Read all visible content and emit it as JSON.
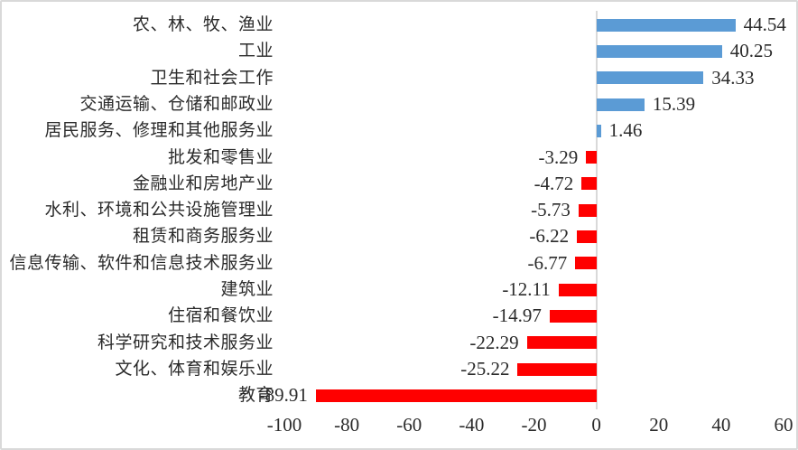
{
  "chart_data": {
    "type": "bar",
    "orientation": "horizontal",
    "title": "",
    "xlabel": "",
    "ylabel": "",
    "xlim": [
      -100,
      60
    ],
    "grid": false,
    "legend": false,
    "categories": [
      "农、林、牧、渔业",
      "工业",
      "卫生和社会工作",
      "交通运输、仓储和邮政业",
      "居民服务、修理和其他服务业",
      "批发和零售业",
      "金融业和房地产业",
      "水利、环境和公共设施管理业",
      "租赁和商务服务业",
      "信息传输、软件和信息技术服务业",
      "建筑业",
      "住宿和餐饮业",
      "科学研究和技术服务业",
      "文化、体育和娱乐业",
      "教育"
    ],
    "values": [
      44.54,
      40.25,
      34.33,
      15.39,
      1.46,
      -3.29,
      -4.72,
      -5.73,
      -6.22,
      -6.77,
      -12.11,
      -14.97,
      -22.29,
      -25.22,
      -89.91
    ],
    "data_labels": [
      "44.54",
      "40.25",
      "34.33",
      "15.39",
      "1.46",
      "-3.29",
      "-4.72",
      "-5.73",
      "-6.22",
      "-6.77",
      "-12.11",
      "-14.97",
      "-22.29",
      "-25.22",
      "-89.91"
    ],
    "x_ticks": [
      -100,
      -80,
      -60,
      -40,
      -20,
      0,
      20,
      40,
      60
    ],
    "x_tick_labels": [
      "-100",
      "-80",
      "-60",
      "-40",
      "-20",
      "0",
      "20",
      "40",
      "60"
    ],
    "colors": {
      "positive_bar": "#5B9BD5",
      "negative_bar": "#FF0000",
      "axis_line": "#D9D9D9",
      "text": "#2B2B2B",
      "frame_border": "#D9D9D9"
    }
  }
}
